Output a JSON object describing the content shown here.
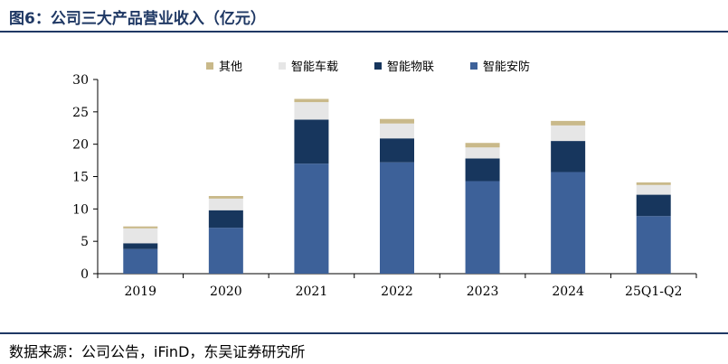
{
  "title": "图6：公司三大产品营业收入（亿元）",
  "source": "数据来源：公司公告，iFinD，东吴证券研究所",
  "colors": {
    "header_rule": "#1f3864",
    "series": [
      "#3d6199",
      "#17365d",
      "#e6e6e6",
      "#c9b98a"
    ]
  },
  "chart_data": {
    "type": "bar",
    "stacked": true,
    "categories": [
      "2019",
      "2020",
      "2021",
      "2022",
      "2023",
      "2024",
      "25Q1-Q2"
    ],
    "series": [
      {
        "name": "智能安防",
        "values": [
          3.8,
          7.1,
          17.0,
          17.2,
          14.3,
          15.7,
          8.9
        ]
      },
      {
        "name": "智能物联",
        "values": [
          0.9,
          2.7,
          6.8,
          3.7,
          3.5,
          4.8,
          3.3
        ]
      },
      {
        "name": "智能车载",
        "values": [
          2.3,
          1.8,
          2.7,
          2.3,
          1.7,
          2.4,
          1.5
        ]
      },
      {
        "name": "其他",
        "values": [
          0.3,
          0.4,
          0.5,
          0.7,
          0.7,
          0.7,
          0.4
        ]
      }
    ],
    "legend_order": [
      "其他",
      "智能车载",
      "智能物联",
      "智能安防"
    ],
    "ylim": [
      0,
      30
    ],
    "yticks": [
      0,
      5,
      10,
      15,
      20,
      25,
      30
    ],
    "grid": false,
    "legend_position": "top"
  }
}
